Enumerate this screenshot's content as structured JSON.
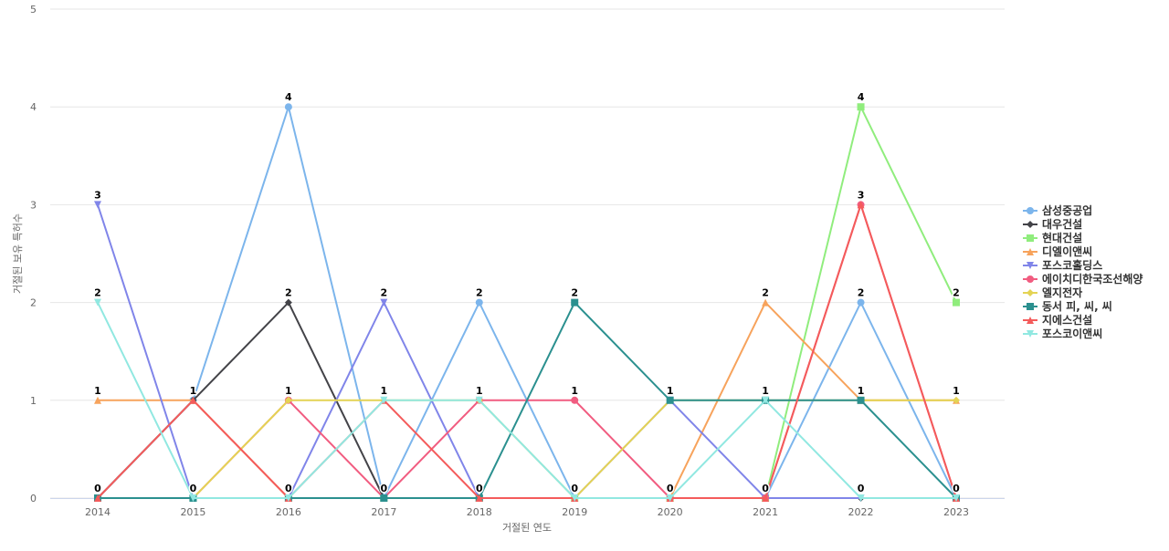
{
  "chart_data": {
    "type": "line",
    "x_label": "거절된 연도",
    "y_label": "거절된 보유 특허수",
    "categories": [
      "2014",
      "2015",
      "2016",
      "2017",
      "2018",
      "2019",
      "2020",
      "2021",
      "2022",
      "2023"
    ],
    "ylim": [
      0,
      5
    ],
    "yticks": [
      0,
      1,
      2,
      3,
      4,
      5
    ],
    "grid": true,
    "series": [
      {
        "name": "삼성중공업",
        "color": "#7cb5ec",
        "marker": "circle",
        "values": [
          0,
          1,
          4,
          0,
          2,
          0,
          0,
          0,
          2,
          0
        ]
      },
      {
        "name": "대우건설",
        "color": "#434348",
        "marker": "diamond",
        "values": [
          0,
          1,
          2,
          0,
          0,
          0,
          0,
          0,
          0,
          0
        ]
      },
      {
        "name": "현대건설",
        "color": "#90ed7d",
        "marker": "square",
        "values": [
          0,
          0,
          0,
          0,
          0,
          0,
          0,
          0,
          4,
          2
        ]
      },
      {
        "name": "디엘이앤씨",
        "color": "#f7a35c",
        "marker": "triangle",
        "values": [
          1,
          1,
          0,
          0,
          0,
          0,
          0,
          2,
          1,
          1
        ]
      },
      {
        "name": "포스코홀딩스",
        "color": "#8085e9",
        "marker": "triangle-down",
        "values": [
          3,
          0,
          0,
          2,
          0,
          0,
          1,
          0,
          0,
          0
        ]
      },
      {
        "name": "에이치디한국조선해양",
        "color": "#f15c80",
        "marker": "circle",
        "values": [
          0,
          0,
          1,
          0,
          1,
          1,
          0,
          0,
          3,
          0
        ]
      },
      {
        "name": "엘지전자",
        "color": "#e4d354",
        "marker": "diamond",
        "values": [
          0,
          0,
          1,
          1,
          1,
          0,
          1,
          1,
          1,
          1
        ]
      },
      {
        "name": "동서 피, 씨, 씨",
        "color": "#2b908f",
        "marker": "square",
        "values": [
          0,
          0,
          0,
          0,
          0,
          2,
          1,
          1,
          1,
          0
        ]
      },
      {
        "name": "지에스건설",
        "color": "#f45b5b",
        "marker": "triangle",
        "values": [
          0,
          1,
          0,
          1,
          0,
          0,
          0,
          0,
          3,
          0
        ]
      },
      {
        "name": "포스코이앤씨",
        "color": "#91e8e1",
        "marker": "triangle-down",
        "values": [
          2,
          0,
          0,
          1,
          1,
          0,
          0,
          1,
          0,
          0
        ]
      }
    ]
  }
}
